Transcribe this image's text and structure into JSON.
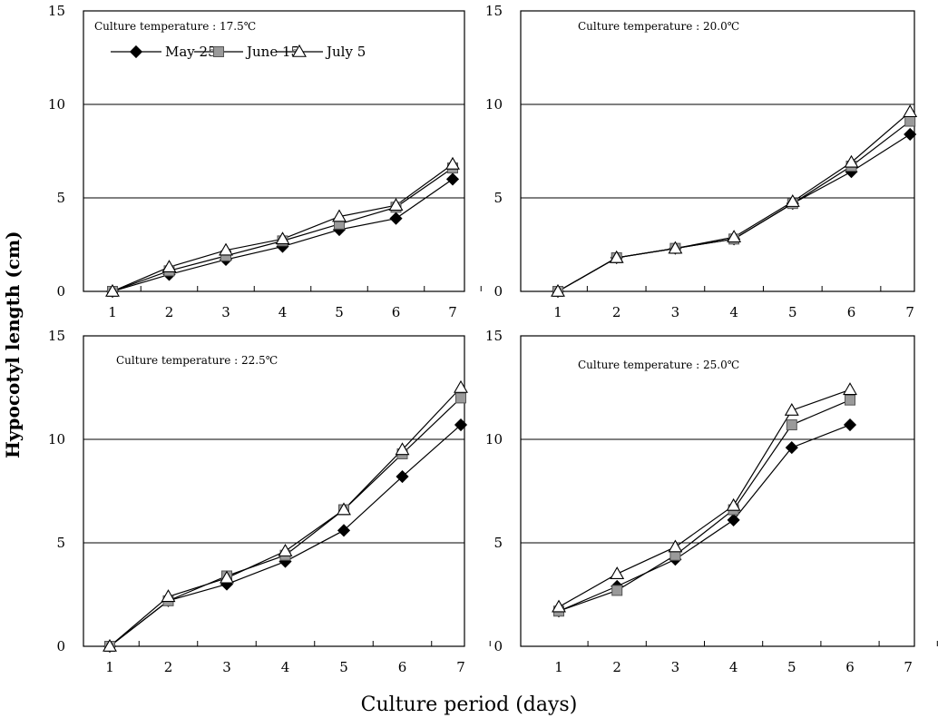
{
  "figure": {
    "y_title": "Hypocotyl length (cm)",
    "x_title": "Culture period (days)"
  },
  "colors": {
    "may25": "#000000",
    "june15": "#9a9a9a",
    "july5": "#ffffff",
    "line": "#000000"
  },
  "legend": {
    "items": [
      {
        "label": "May 25",
        "marker": "diamond"
      },
      {
        "label": "June 15",
        "marker": "square"
      },
      {
        "label": "July 5",
        "marker": "triangle"
      }
    ]
  },
  "chart_data": [
    {
      "type": "line",
      "title": "Culture temperature : 17.5℃",
      "x": [
        1,
        2,
        3,
        4,
        5,
        6,
        7
      ],
      "ylim": [
        0,
        15
      ],
      "yticks": [
        0,
        5,
        10,
        15
      ],
      "series": [
        {
          "name": "May 25",
          "values": [
            0,
            0.9,
            1.7,
            2.4,
            3.3,
            3.9,
            6.0
          ]
        },
        {
          "name": "June 15",
          "values": [
            0,
            1.1,
            1.9,
            2.7,
            3.6,
            4.5,
            6.6
          ]
        },
        {
          "name": "July 5",
          "values": [
            0,
            1.3,
            2.2,
            2.8,
            4.0,
            4.6,
            6.8
          ]
        }
      ]
    },
    {
      "type": "line",
      "title": "Culture temperature : 20.0℃",
      "x": [
        1,
        2,
        3,
        4,
        5,
        6,
        7
      ],
      "ylim": [
        0,
        15
      ],
      "yticks": [
        0,
        5,
        10,
        15
      ],
      "series": [
        {
          "name": "May 25",
          "values": [
            0,
            1.8,
            2.3,
            2.8,
            4.7,
            6.4,
            8.4
          ]
        },
        {
          "name": "June 15",
          "values": [
            0,
            1.8,
            2.3,
            2.8,
            4.7,
            6.7,
            9.1
          ]
        },
        {
          "name": "July 5",
          "values": [
            0,
            1.8,
            2.3,
            2.9,
            4.8,
            6.9,
            9.6
          ]
        }
      ]
    },
    {
      "type": "line",
      "title": "Culture temperature : 22.5℃",
      "x": [
        1,
        2,
        3,
        4,
        5,
        6,
        7
      ],
      "ylim": [
        0,
        15
      ],
      "yticks": [
        0,
        5,
        10,
        15
      ],
      "series": [
        {
          "name": "May 25",
          "values": [
            0,
            2.2,
            3.0,
            4.1,
            5.6,
            8.2,
            10.7
          ]
        },
        {
          "name": "June 15",
          "values": [
            0,
            2.2,
            3.4,
            4.4,
            6.6,
            9.3,
            12.0
          ]
        },
        {
          "name": "July 5",
          "values": [
            0,
            2.4,
            3.3,
            4.6,
            6.6,
            9.5,
            12.5
          ]
        }
      ]
    },
    {
      "type": "line",
      "title": "Culture temperature : 25.0℃",
      "x": [
        1,
        2,
        3,
        4,
        5,
        6
      ],
      "xticks": [
        1,
        2,
        3,
        4,
        5,
        6,
        7
      ],
      "ylim": [
        0,
        15
      ],
      "yticks": [
        0,
        5,
        10,
        15
      ],
      "series": [
        {
          "name": "May 25",
          "values": [
            1.7,
            2.9,
            4.2,
            6.1,
            9.6,
            10.7
          ]
        },
        {
          "name": "June 15",
          "values": [
            1.7,
            2.7,
            4.4,
            6.6,
            10.7,
            11.9
          ]
        },
        {
          "name": "July 5",
          "values": [
            1.9,
            3.5,
            4.8,
            6.8,
            11.4,
            12.4
          ]
        }
      ]
    }
  ]
}
